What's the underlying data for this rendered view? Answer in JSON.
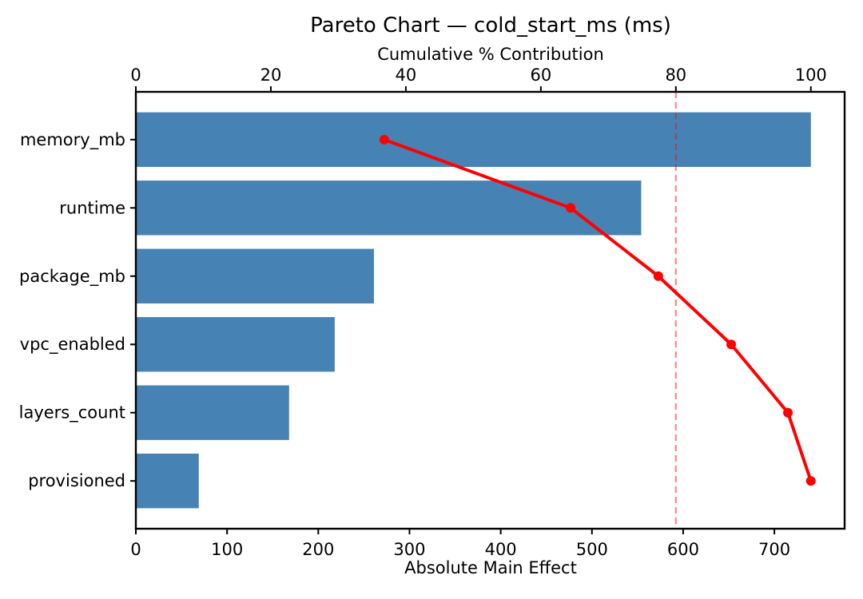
{
  "chart_data": {
    "type": "bar",
    "subtype": "pareto",
    "orientation": "horizontal",
    "title": "Pareto Chart — cold_start_ms (ms)",
    "xlabel_top": "Cumulative % Contribution",
    "xlabel_bottom": "Absolute Main Effect",
    "categories": [
      "memory_mb",
      "runtime",
      "package_mb",
      "vpc_enabled",
      "layers_count",
      "provisioned"
    ],
    "values": [
      740,
      554,
      261,
      218,
      168,
      69
    ],
    "bar_color": "#4682b4",
    "grid": false,
    "legend": "none",
    "x_ticks_bottom": [
      0,
      100,
      200,
      300,
      400,
      500,
      600,
      700
    ],
    "xlim_bottom": [
      0,
      777
    ],
    "x_ticks_top": [
      0,
      20,
      40,
      60,
      80,
      100
    ],
    "xlim_top": [
      0,
      105
    ],
    "series": [
      {
        "name": "cumulative-percent",
        "type": "line",
        "axis": "top",
        "values": [
          36.8,
          64.4,
          77.4,
          88.2,
          96.6,
          100.0
        ],
        "color": "#ff0000",
        "marker": "circle"
      }
    ],
    "threshold_line": {
      "value": 80,
      "axis": "top",
      "style": "dashed",
      "color": "#ff0000",
      "opacity": 0.5
    }
  }
}
